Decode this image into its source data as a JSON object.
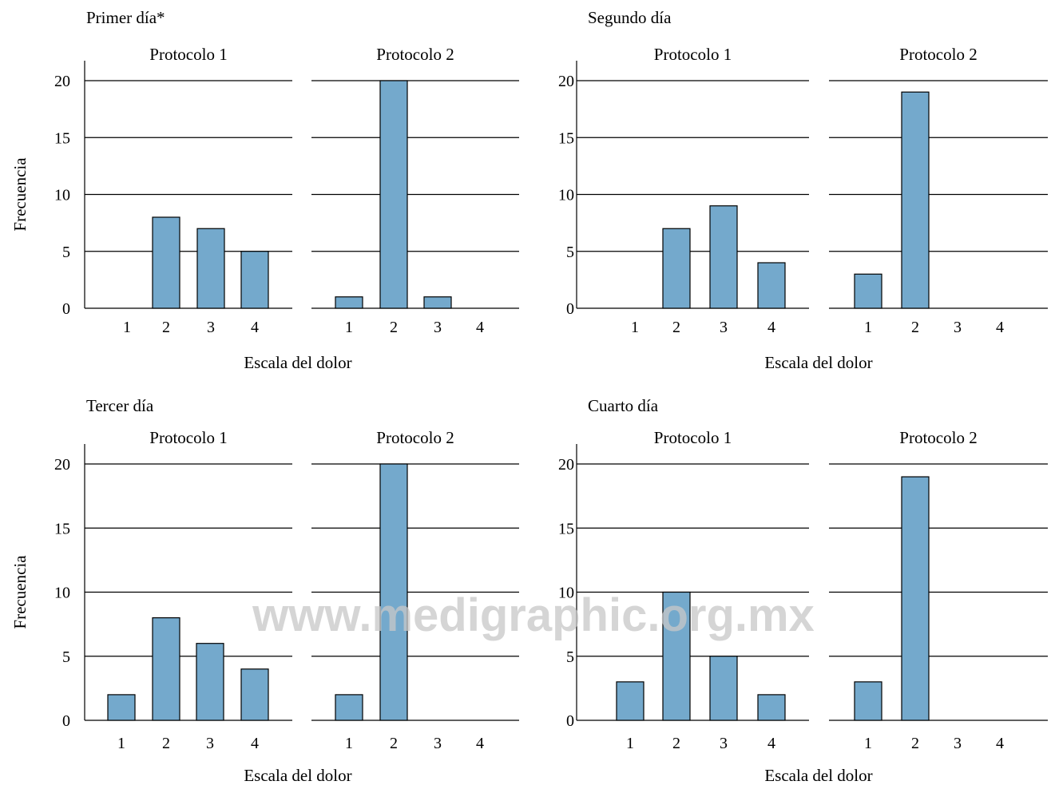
{
  "bar_color": "#74a9cc",
  "watermark": "www.medigraphic.org.mx",
  "chart_data": [
    {
      "type": "bar",
      "title": "Primer día*",
      "ylabel": "Frecuencia",
      "xlabel": "Escala del dolor",
      "ylim": [
        0,
        20
      ],
      "yticks": [
        0,
        5,
        10,
        15,
        20
      ],
      "categories": [
        "1",
        "2",
        "3",
        "4"
      ],
      "series": [
        {
          "name": "Protocolo 1",
          "values": [
            0,
            8,
            7,
            5
          ]
        },
        {
          "name": "Protocolo 2",
          "values": [
            1,
            20,
            1,
            0
          ]
        }
      ]
    },
    {
      "type": "bar",
      "title": "Segundo día",
      "ylabel": "",
      "xlabel": "Escala del dolor",
      "ylim": [
        0,
        20
      ],
      "yticks": [
        0,
        5,
        10,
        15,
        20
      ],
      "categories": [
        "1",
        "2",
        "3",
        "4"
      ],
      "series": [
        {
          "name": "Protocolo 1",
          "values": [
            0,
            7,
            9,
            4
          ]
        },
        {
          "name": "Protocolo 2",
          "values": [
            3,
            19,
            0,
            0
          ]
        }
      ]
    },
    {
      "type": "bar",
      "title": "Tercer día",
      "ylabel": "Frecuencia",
      "xlabel": "Escala del dolor",
      "ylim": [
        0,
        20
      ],
      "yticks": [
        0,
        5,
        10,
        15,
        20
      ],
      "categories": [
        "1",
        "2",
        "3",
        "4"
      ],
      "series": [
        {
          "name": "Protocolo 1",
          "values": [
            2,
            8,
            6,
            4
          ]
        },
        {
          "name": "Protocolo 2",
          "values": [
            2,
            20,
            0,
            0
          ]
        }
      ]
    },
    {
      "type": "bar",
      "title": "Cuarto día",
      "ylabel": "",
      "xlabel": "Escala del dolor",
      "ylim": [
        0,
        20
      ],
      "yticks": [
        0,
        5,
        10,
        15,
        20
      ],
      "categories": [
        "1",
        "2",
        "3",
        "4"
      ],
      "series": [
        {
          "name": "Protocolo 1",
          "values": [
            3,
            10,
            5,
            2
          ]
        },
        {
          "name": "Protocolo 2",
          "values": [
            3,
            19,
            0,
            0
          ]
        }
      ]
    }
  ]
}
